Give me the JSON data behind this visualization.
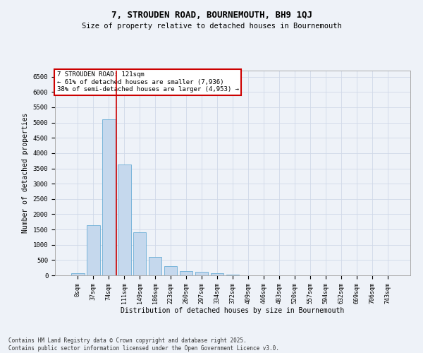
{
  "title": "7, STROUDEN ROAD, BOURNEMOUTH, BH9 1QJ",
  "subtitle": "Size of property relative to detached houses in Bournemouth",
  "xlabel": "Distribution of detached houses by size in Bournemouth",
  "ylabel": "Number of detached properties",
  "footer_line1": "Contains HM Land Registry data © Crown copyright and database right 2025.",
  "footer_line2": "Contains public sector information licensed under the Open Government Licence v3.0.",
  "bar_labels": [
    "0sqm",
    "37sqm",
    "74sqm",
    "111sqm",
    "149sqm",
    "186sqm",
    "223sqm",
    "260sqm",
    "297sqm",
    "334sqm",
    "372sqm",
    "409sqm",
    "446sqm",
    "483sqm",
    "520sqm",
    "557sqm",
    "594sqm",
    "632sqm",
    "669sqm",
    "706sqm",
    "743sqm"
  ],
  "bar_values": [
    60,
    1650,
    5100,
    3620,
    1400,
    610,
    305,
    145,
    115,
    75,
    20,
    0,
    0,
    0,
    0,
    0,
    0,
    0,
    0,
    0,
    0
  ],
  "bar_color": "#c5d8ed",
  "bar_edge_color": "#6aaed6",
  "ylim": [
    0,
    6700
  ],
  "yticks": [
    0,
    500,
    1000,
    1500,
    2000,
    2500,
    3000,
    3500,
    4000,
    4500,
    5000,
    5500,
    6000,
    6500
  ],
  "property_line_x": 3,
  "property_label": "7 STROUDEN ROAD: 121sqm",
  "annotation_line1": "← 61% of detached houses are smaller (7,936)",
  "annotation_line2": "38% of semi-detached houses are larger (4,953) →",
  "annotation_box_color": "#ffffff",
  "annotation_box_edge": "#cc0000",
  "vline_color": "#cc0000",
  "grid_color": "#d0d8e8",
  "bg_color": "#eef2f8"
}
